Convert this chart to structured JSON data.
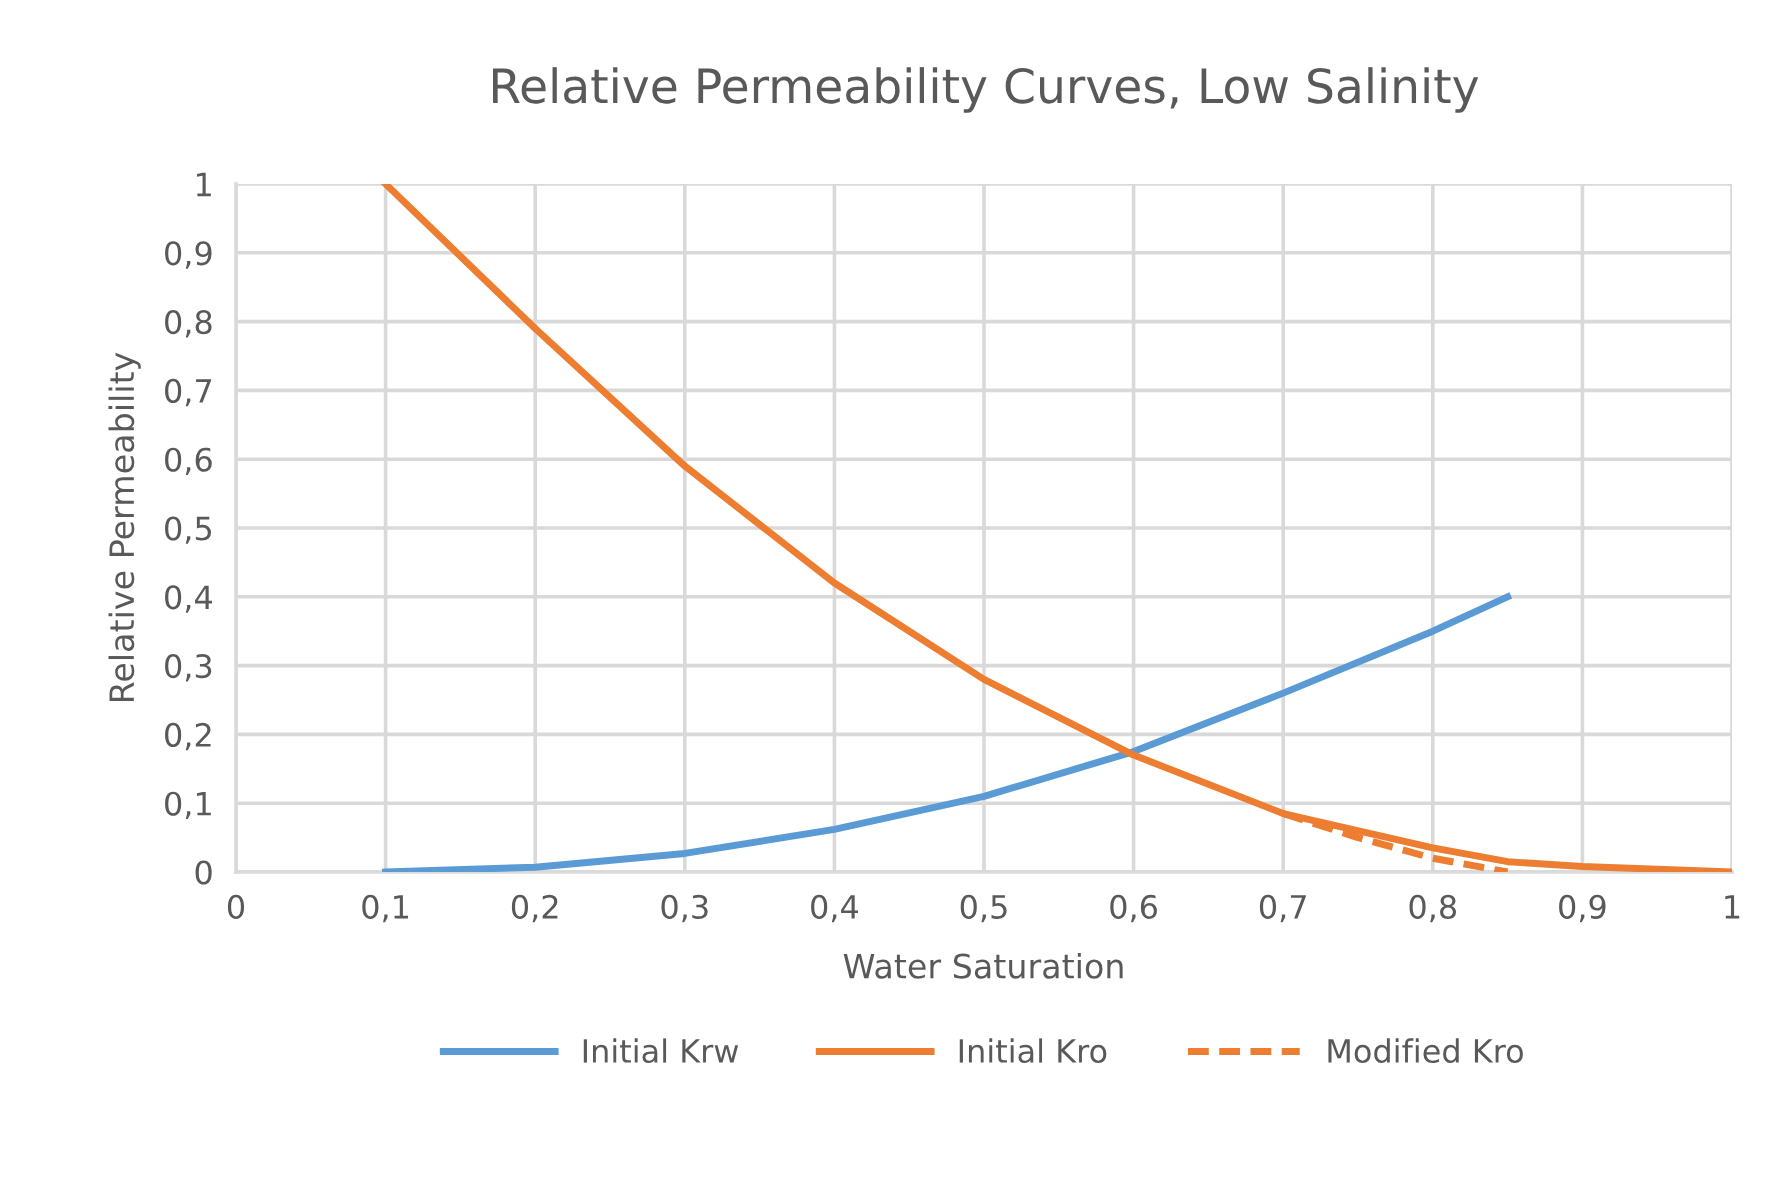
{
  "chart_data": {
    "type": "line",
    "title": "Relative Permeability Curves, Low Salinity",
    "xlabel": "Water Saturation",
    "ylabel": "Relative Permeability",
    "series": [
      {
        "name": "Initial Krw",
        "color": "#5b9bd5",
        "line_style": "solid",
        "x": [
          0.1,
          0.2,
          0.3,
          0.4,
          0.5,
          0.6,
          0.7,
          0.8,
          0.85
        ],
        "values": [
          0,
          0.007,
          0.027,
          0.062,
          0.11,
          0.175,
          0.26,
          0.35,
          0.4
        ]
      },
      {
        "name": "Initial Kro",
        "color": "#ed7d31",
        "line_style": "solid",
        "x": [
          0.1,
          0.2,
          0.3,
          0.4,
          0.5,
          0.6,
          0.7,
          0.8,
          0.85,
          0.9,
          1.0
        ],
        "values": [
          1,
          0.79,
          0.59,
          0.42,
          0.28,
          0.17,
          0.085,
          0.035,
          0.015,
          0.008,
          0
        ]
      },
      {
        "name": "Modified Kro",
        "color": "#ed7d31",
        "line_style": "dashed",
        "x": [
          0.7,
          0.75,
          0.8,
          0.85
        ],
        "values": [
          0.085,
          0.05,
          0.02,
          0
        ]
      }
    ],
    "xlim": [
      0,
      1
    ],
    "ylim": [
      0,
      1
    ],
    "xticks": [
      0,
      {
        "value": 0.1,
        "label": "0,1"
      },
      {
        "value": 0.2,
        "label": "0,2"
      },
      {
        "value": 0.3,
        "label": "0,3"
      },
      {
        "value": 0.4,
        "label": "0,4"
      },
      {
        "value": 0.5,
        "label": "0,5"
      },
      {
        "value": 0.6,
        "label": "0,6"
      },
      {
        "value": 0.7,
        "label": "0,7"
      },
      {
        "value": 0.8,
        "label": "0,8"
      },
      {
        "value": 0.9,
        "label": "0,9"
      },
      1
    ],
    "yticks": [
      0,
      {
        "value": 0.1,
        "label": "0,1"
      },
      {
        "value": 0.2,
        "label": "0,2"
      },
      {
        "value": 0.3,
        "label": "0,3"
      },
      {
        "value": 0.4,
        "label": "0,4"
      },
      {
        "value": 0.5,
        "label": "0,5"
      },
      {
        "value": 0.6,
        "label": "0,6"
      },
      {
        "value": 0.7,
        "label": "0,7"
      },
      {
        "value": 0.8,
        "label": "0,8"
      },
      {
        "value": 0.9,
        "label": "0,9"
      },
      1
    ],
    "grid": true,
    "legend": "bottom",
    "marker": "none"
  }
}
